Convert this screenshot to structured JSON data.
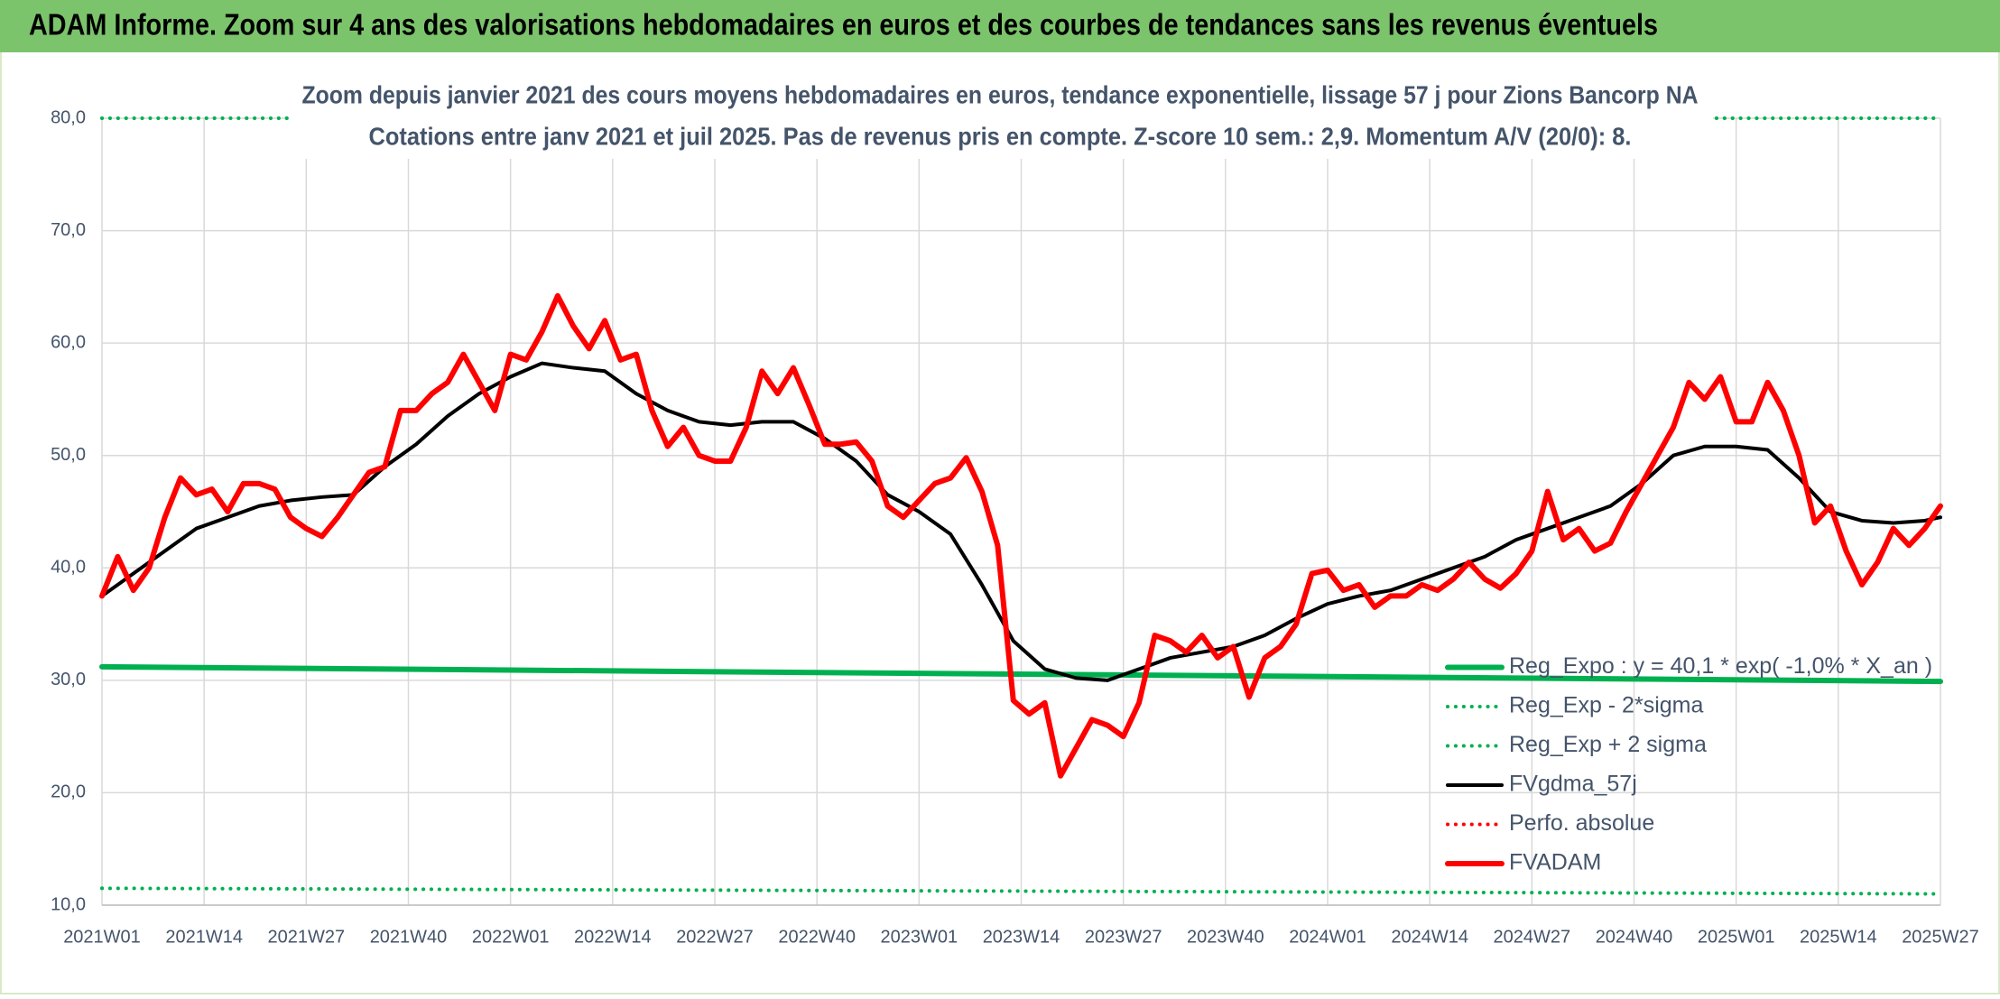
{
  "chart_data": {
    "type": "line",
    "title": "ADAM Informe. Zoom sur 4 ans des valorisations hebdomadaires en euros et des courbes de tendances sans les revenus éventuels",
    "subtitle": [
      "Zoom depuis janvier 2021 des cours moyens hebdomadaires en euros, tendance exponentielle, lissage 57 j pour Zions Bancorp NA",
      "Cotations entre janv 2021 et juil 2025. Pas de revenus pris en compte. Z-score 10 sem.: 2,9. Momentum A/V (20/0): 8."
    ],
    "xlim": [
      0,
      234
    ],
    "xticks": [
      {
        "value": 0,
        "label": "2021W01"
      },
      {
        "value": 13,
        "label": "2021W14"
      },
      {
        "value": 26,
        "label": "2021W27"
      },
      {
        "value": 39,
        "label": "2021W40"
      },
      {
        "value": 52,
        "label": "2022W01"
      },
      {
        "value": 65,
        "label": "2022W14"
      },
      {
        "value": 78,
        "label": "2022W27"
      },
      {
        "value": 91,
        "label": "2022W40"
      },
      {
        "value": 104,
        "label": "2023W01"
      },
      {
        "value": 117,
        "label": "2023W14"
      },
      {
        "value": 130,
        "label": "2023W27"
      },
      {
        "value": 143,
        "label": "2023W40"
      },
      {
        "value": 156,
        "label": "2024W01"
      },
      {
        "value": 169,
        "label": "2024W14"
      },
      {
        "value": 182,
        "label": "2024W27"
      },
      {
        "value": 195,
        "label": "2024W40"
      },
      {
        "value": 208,
        "label": "2025W01"
      },
      {
        "value": 221,
        "label": "2025W14"
      },
      {
        "value": 234,
        "label": "2025W27"
      }
    ],
    "ylim": [
      10,
      80
    ],
    "yticks": [
      {
        "value": 10,
        "label": "10,0"
      },
      {
        "value": 20,
        "label": "20,0"
      },
      {
        "value": 30,
        "label": "30,0"
      },
      {
        "value": 40,
        "label": "40,0"
      },
      {
        "value": 50,
        "label": "50,0"
      },
      {
        "value": 60,
        "label": "60,0"
      },
      {
        "value": 70,
        "label": "70,0"
      },
      {
        "value": 80,
        "label": "80,0"
      }
    ],
    "grid": true,
    "legend": "lower right",
    "series": [
      {
        "name": "Reg_Expo : y = 40,1 * exp( -1,0% *  X_an )",
        "color": "#00b050",
        "line_style": "solid",
        "linewidth": 6,
        "x": [
          0,
          234
        ],
        "values": [
          31.2,
          29.9
        ]
      },
      {
        "name": "Reg_Exp - 2*sigma",
        "color": "#00b050",
        "line_style": "dotted",
        "linewidth": 4,
        "x": [
          0,
          234
        ],
        "values": [
          11.5,
          11.0
        ]
      },
      {
        "name": "Reg_Exp + 2 sigma",
        "color": "#00b050",
        "line_style": "dotted",
        "linewidth": 4,
        "x": [
          0,
          234
        ],
        "values": [
          80,
          80
        ]
      },
      {
        "name": "FVgdma_57j",
        "color": "#000000",
        "line_style": "solid",
        "linewidth": 4,
        "x": [
          0,
          4,
          8,
          12,
          16,
          20,
          24,
          28,
          32,
          36,
          40,
          44,
          48,
          52,
          56,
          60,
          64,
          68,
          72,
          76,
          80,
          84,
          88,
          92,
          96,
          100,
          104,
          108,
          112,
          116,
          120,
          124,
          128,
          132,
          136,
          140,
          144,
          148,
          152,
          156,
          160,
          164,
          168,
          172,
          176,
          180,
          184,
          188,
          192,
          196,
          200,
          204,
          208,
          212,
          216,
          220,
          224,
          228,
          232,
          234
        ],
        "values": [
          37.5,
          39.5,
          41.5,
          43.5,
          44.5,
          45.5,
          46,
          46.3,
          46.5,
          49,
          51,
          53.5,
          55.5,
          57,
          58.2,
          57.8,
          57.5,
          55.5,
          54,
          53,
          52.7,
          53,
          53,
          51.5,
          49.5,
          46.5,
          45,
          43,
          38.5,
          33.5,
          31,
          30.2,
          30,
          31,
          32,
          32.5,
          33,
          34,
          35.5,
          36.8,
          37.5,
          38,
          39,
          40,
          41,
          42.5,
          43.5,
          44.5,
          45.5,
          47.5,
          50,
          50.8,
          50.8,
          50.5,
          48,
          45,
          44.2,
          44,
          44.2,
          44.5
        ]
      },
      {
        "name": "Perfo. absolue",
        "color": "#ff0000",
        "line_style": "dotted",
        "linewidth": 4,
        "x": [],
        "values": []
      },
      {
        "name": "FVADAM",
        "color": "#ff0000",
        "line_style": "solid",
        "linewidth": 6,
        "x": [
          0,
          2,
          4,
          6,
          8,
          10,
          12,
          14,
          16,
          18,
          20,
          22,
          24,
          26,
          28,
          30,
          32,
          34,
          36,
          38,
          40,
          42,
          44,
          46,
          48,
          50,
          52,
          54,
          56,
          58,
          60,
          62,
          64,
          66,
          68,
          70,
          72,
          74,
          76,
          78,
          80,
          82,
          84,
          86,
          88,
          90,
          92,
          94,
          96,
          98,
          100,
          102,
          104,
          106,
          108,
          110,
          112,
          114,
          116,
          118,
          120,
          122,
          124,
          126,
          128,
          130,
          132,
          134,
          136,
          138,
          140,
          142,
          144,
          146,
          148,
          150,
          152,
          154,
          156,
          158,
          160,
          162,
          164,
          166,
          168,
          170,
          172,
          174,
          176,
          178,
          180,
          182,
          184,
          186,
          188,
          190,
          192,
          194,
          196,
          198,
          200,
          202,
          204,
          206,
          208,
          210,
          212,
          214,
          216,
          218,
          220,
          222,
          224,
          226,
          228,
          230,
          232,
          234
        ],
        "values": [
          37.5,
          41,
          38,
          40,
          44.5,
          48,
          46.5,
          47,
          45,
          47.5,
          47.5,
          47,
          44.5,
          43.5,
          42.8,
          44.5,
          46.5,
          48.5,
          49,
          54,
          54,
          55.5,
          56.5,
          59,
          56.5,
          54,
          59,
          58.5,
          61,
          64.2,
          61.5,
          59.5,
          62,
          58.5,
          59,
          54,
          50.8,
          52.5,
          50,
          49.5,
          49.5,
          52.5,
          57.5,
          55.5,
          57.8,
          54.5,
          51,
          51,
          51.2,
          49.5,
          45.5,
          44.5,
          46,
          47.5,
          48,
          49.8,
          46.8,
          42,
          28.2,
          27,
          28,
          21.5,
          24,
          26.5,
          26,
          25,
          28,
          34,
          33.5,
          32.5,
          34,
          32,
          33,
          28.5,
          32,
          33,
          35,
          39.5,
          39.8,
          38,
          38.5,
          36.5,
          37.5,
          37.5,
          38.5,
          38,
          39,
          40.5,
          39,
          38.2,
          39.5,
          41.5,
          46.8,
          42.5,
          43.5,
          41.5,
          42.2,
          45,
          47.5,
          50,
          52.5,
          56.5,
          55,
          57,
          53,
          53,
          56.5,
          54,
          50,
          44,
          45.5,
          41.5,
          38.5,
          40.5,
          43.5,
          42,
          43.5,
          45.5
        ]
      }
    ]
  }
}
